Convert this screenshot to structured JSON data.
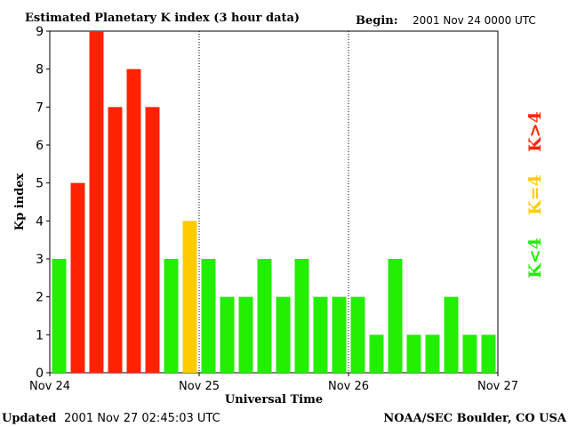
{
  "header": {
    "title": "Estimated Planetary K index (3 hour data)",
    "begin_label": "Begin:",
    "begin_value": "2001 Nov 24 0000 UTC"
  },
  "footer": {
    "updated_label": "Updated",
    "updated_value": "2001 Nov 27 02:45:03 UTC",
    "credit": "NOAA/SEC Boulder, CO USA"
  },
  "legend": [
    {
      "text": "K>4",
      "color": "#ff2200"
    },
    {
      "text": "K=4",
      "color": "#ffcc00"
    },
    {
      "text": "K<4",
      "color": "#22ee00"
    }
  ],
  "chart_data": {
    "type": "bar",
    "title": "Estimated Planetary K index (3 hour data)",
    "xlabel": "Universal Time",
    "ylabel": "Kp index",
    "ylim": [
      0,
      9
    ],
    "yticks": [
      0,
      1,
      2,
      3,
      4,
      5,
      6,
      7,
      8,
      9
    ],
    "x_ticks": [
      "Nov 24",
      "Nov 25",
      "Nov 26",
      "Nov 27"
    ],
    "bins_per_day": 8,
    "days_dividers": true,
    "colors": {
      "low": "#22ee00",
      "equal": "#ffcc00",
      "high": "#ff2200"
    },
    "values": [
      3,
      5,
      9,
      7,
      8,
      7,
      3,
      4,
      3,
      2,
      2,
      3,
      2,
      3,
      2,
      2,
      2,
      1,
      3,
      1,
      1,
      2,
      1,
      1
    ]
  }
}
